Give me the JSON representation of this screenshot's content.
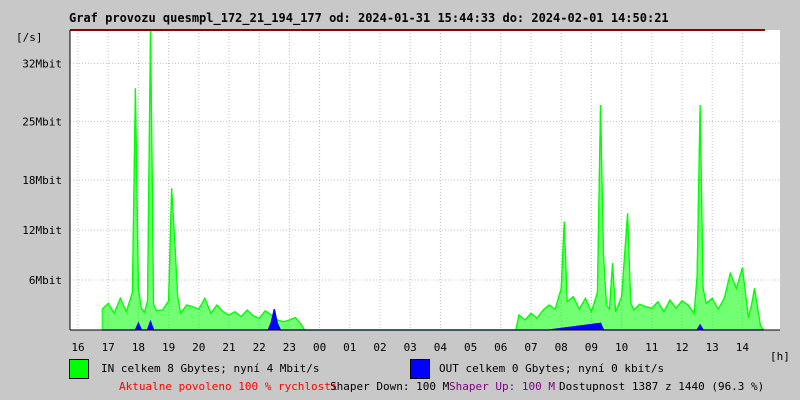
{
  "chart_data": {
    "type": "line",
    "title": "Graf provozu quesmpl_172_21_194_177 od: 2024-01-31 15:44:33 do: 2024-02-01 14:50:21",
    "ylabel": "[/s]",
    "xlabel": "[h]",
    "ylim": [
      0,
      36
    ],
    "y_unit": "Mbit",
    "y_ticks": [
      {
        "value": 6,
        "label": "6Mbit"
      },
      {
        "value": 12,
        "label": "12Mbit"
      },
      {
        "value": 18,
        "label": "18Mbit"
      },
      {
        "value": 25,
        "label": "25Mbit"
      },
      {
        "value": 32,
        "label": "32Mbit"
      }
    ],
    "x_tick_labels": [
      "16",
      "17",
      "18",
      "19",
      "20",
      "21",
      "22",
      "23",
      "00",
      "01",
      "02",
      "03",
      "04",
      "05",
      "06",
      "07",
      "08",
      "09",
      "10",
      "11",
      "12",
      "13",
      "14"
    ],
    "grid": true,
    "colors": {
      "in": "#00ff00",
      "out": "#0000ff",
      "limit": "#8b0000"
    },
    "limit_value": 36,
    "series": [
      {
        "name": "IN",
        "points": [
          [
            16.8,
            2.5
          ],
          [
            17.0,
            3.2
          ],
          [
            17.2,
            2.0
          ],
          [
            17.4,
            3.8
          ],
          [
            17.6,
            2.2
          ],
          [
            17.8,
            4.5
          ],
          [
            17.9,
            29.0
          ],
          [
            18.0,
            5.0
          ],
          [
            18.1,
            2.6
          ],
          [
            18.2,
            2.1
          ],
          [
            18.3,
            3.5
          ],
          [
            18.4,
            36.0
          ],
          [
            18.45,
            21.0
          ],
          [
            18.5,
            3.1
          ],
          [
            18.6,
            2.3
          ],
          [
            18.8,
            2.4
          ],
          [
            19.0,
            3.5
          ],
          [
            19.1,
            17.0
          ],
          [
            19.2,
            11.0
          ],
          [
            19.3,
            4.0
          ],
          [
            19.4,
            2.0
          ],
          [
            19.6,
            3.0
          ],
          [
            19.8,
            2.8
          ],
          [
            20.0,
            2.5
          ],
          [
            20.2,
            3.8
          ],
          [
            20.4,
            2.0
          ],
          [
            20.6,
            3.0
          ],
          [
            20.8,
            2.2
          ],
          [
            21.0,
            1.8
          ],
          [
            21.2,
            2.2
          ],
          [
            21.4,
            1.6
          ],
          [
            21.6,
            2.4
          ],
          [
            21.8,
            1.7
          ],
          [
            22.0,
            1.4
          ],
          [
            22.2,
            2.3
          ],
          [
            22.4,
            1.8
          ],
          [
            22.6,
            1.2
          ],
          [
            22.8,
            1.0
          ],
          [
            23.0,
            1.2
          ],
          [
            23.2,
            1.5
          ],
          [
            23.4,
            0.6
          ],
          [
            23.5,
            0
          ],
          [
            30.5,
            0
          ],
          [
            30.6,
            1.8
          ],
          [
            30.8,
            1.2
          ],
          [
            31.0,
            2.0
          ],
          [
            31.2,
            1.4
          ],
          [
            31.4,
            2.4
          ],
          [
            31.6,
            3.0
          ],
          [
            31.8,
            2.5
          ],
          [
            32.0,
            5.0
          ],
          [
            32.1,
            13.0
          ],
          [
            32.2,
            3.4
          ],
          [
            32.4,
            4.0
          ],
          [
            32.6,
            2.5
          ],
          [
            32.8,
            3.8
          ],
          [
            33.0,
            2.2
          ],
          [
            33.2,
            4.5
          ],
          [
            33.3,
            27.0
          ],
          [
            33.4,
            9.0
          ],
          [
            33.5,
            3.0
          ],
          [
            33.6,
            2.5
          ],
          [
            33.7,
            8.0
          ],
          [
            33.8,
            2.2
          ],
          [
            34.0,
            4.0
          ],
          [
            34.2,
            14.0
          ],
          [
            34.3,
            3.3
          ],
          [
            34.4,
            2.4
          ],
          [
            34.6,
            3.1
          ],
          [
            34.8,
            2.8
          ],
          [
            35.0,
            2.6
          ],
          [
            35.2,
            3.4
          ],
          [
            35.4,
            2.2
          ],
          [
            35.6,
            3.6
          ],
          [
            35.8,
            2.6
          ],
          [
            36.0,
            3.5
          ],
          [
            36.2,
            3.0
          ],
          [
            36.4,
            2.0
          ],
          [
            36.5,
            6.5
          ],
          [
            36.6,
            27.0
          ],
          [
            36.7,
            5.0
          ],
          [
            36.8,
            3.2
          ],
          [
            37.0,
            3.8
          ],
          [
            37.2,
            2.5
          ],
          [
            37.4,
            3.8
          ],
          [
            37.6,
            6.8
          ],
          [
            37.8,
            5.0
          ],
          [
            38.0,
            7.5
          ],
          [
            38.1,
            4.5
          ],
          [
            38.2,
            1.5
          ],
          [
            38.3,
            3.0
          ],
          [
            38.4,
            5.0
          ],
          [
            38.6,
            0.5
          ],
          [
            38.7,
            0
          ]
        ]
      },
      {
        "name": "OUT",
        "points": [
          [
            16.8,
            0
          ],
          [
            17.9,
            0
          ],
          [
            18.0,
            0.8
          ],
          [
            18.1,
            0
          ],
          [
            18.3,
            0
          ],
          [
            18.4,
            1.0
          ],
          [
            18.5,
            0
          ],
          [
            22.3,
            0
          ],
          [
            22.4,
            0.9
          ],
          [
            22.5,
            2.5
          ],
          [
            22.6,
            0.8
          ],
          [
            22.7,
            0
          ],
          [
            31.6,
            0
          ],
          [
            33.3,
            0.8
          ],
          [
            33.4,
            0
          ],
          [
            36.5,
            0
          ],
          [
            36.6,
            0.6
          ],
          [
            36.7,
            0
          ],
          [
            38.7,
            0
          ]
        ]
      }
    ]
  },
  "legend": {
    "in_text": "IN celkem 8 Gbytes; nyní 4 Mbit/s",
    "out_text": "OUT celkem 0 Gbytes; nyní 0 kbit/s"
  },
  "status": {
    "allowed": "Aktualne povoleno 100 % rychlosti",
    "shaper_down": "Shaper Down: 100 M",
    "shaper_up": "Shaper Up: 100 M",
    "availability": "Dostupnost 1387 z 1440 (96.3 %)"
  }
}
